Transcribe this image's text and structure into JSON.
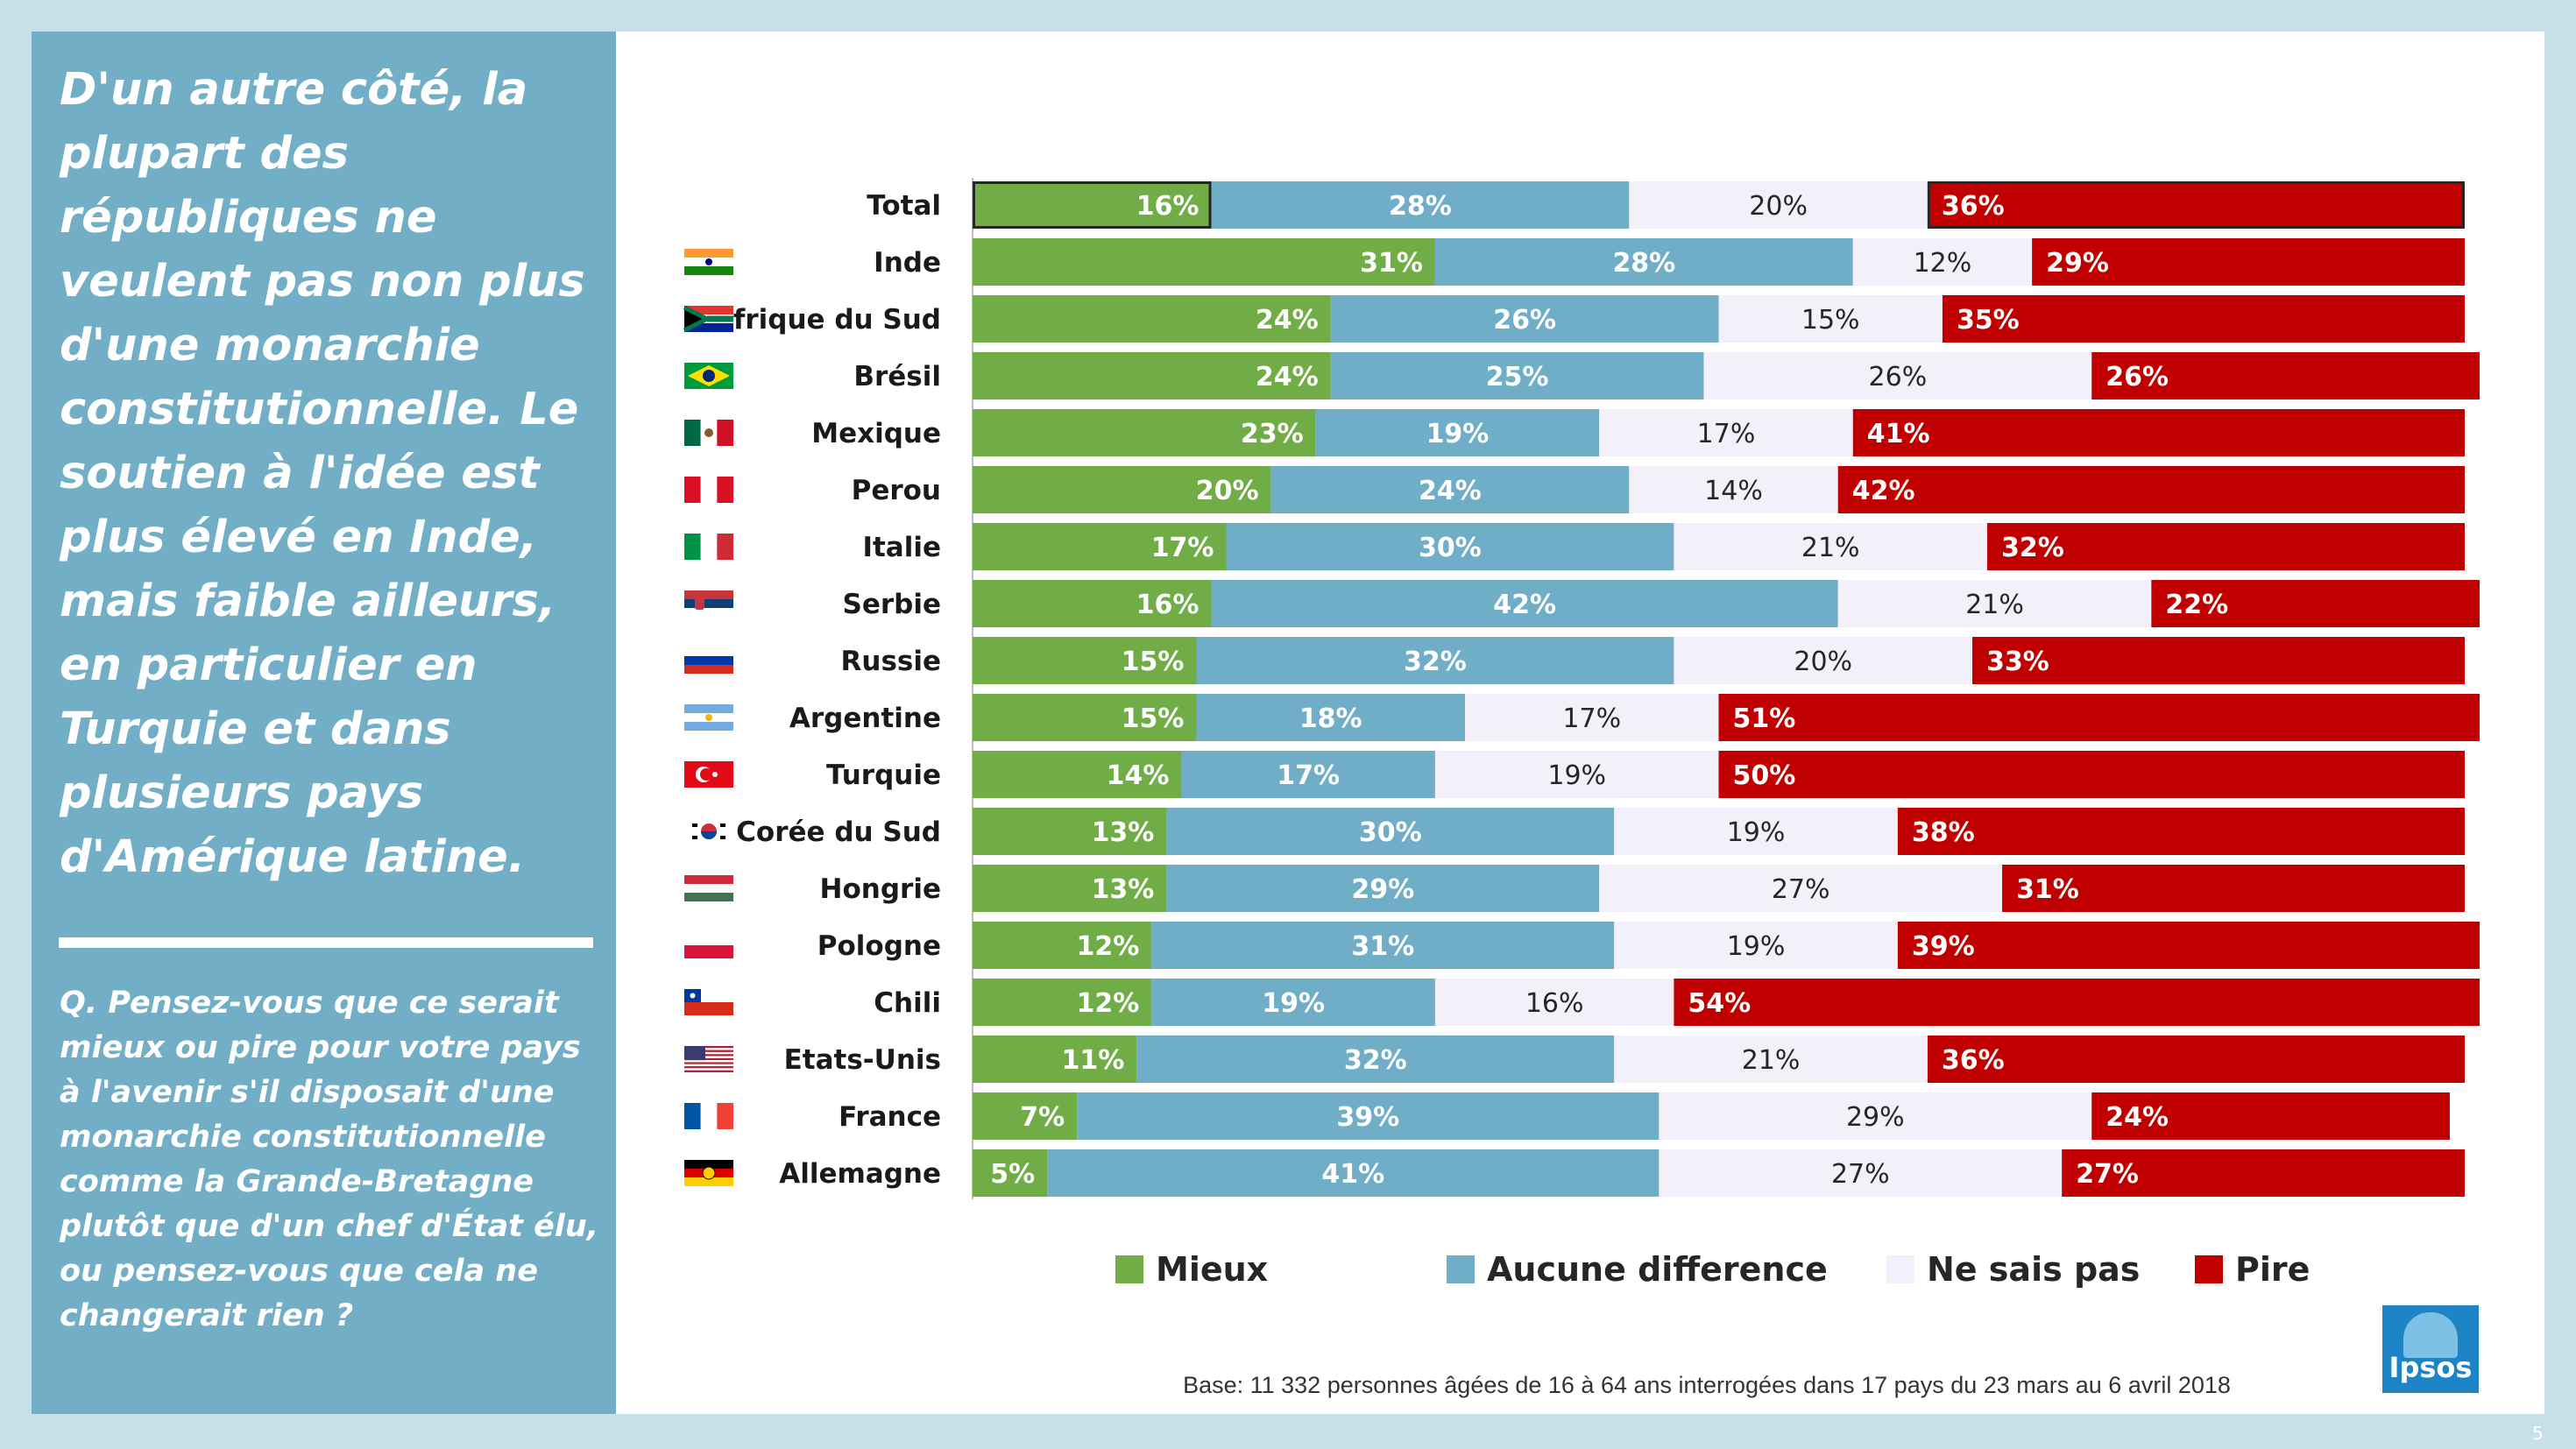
{
  "headline": "D'un autre côté, la plupart des républiques ne veulent pas non plus d'une monarchie constitutionnelle. Le soutien à l'idée est plus élevé en Inde, mais faible ailleurs, en particulier en Turquie et dans plusieurs pays d'Amérique latine.",
  "question": "Q. Pensez-vous que ce serait mieux ou pire pour votre pays à l'avenir s'il disposait d'une monarchie constitutionnelle comme la Grande-Bretagne plutôt que d'un chef d'État élu, ou pensez-vous que cela ne changerait rien ?",
  "footnote": "Base: 11 332 personnes âgées de 16 à 64 ans interrogées dans 17 pays du 23 mars au 6 avril 2018",
  "logo_text": "Ipsos",
  "page_number": "5",
  "colors": {
    "mieux": "#70ad47",
    "aucune": "#70aec8",
    "nsp": "#f4f0fa",
    "pire": "#c00000"
  },
  "chart_data": {
    "type": "bar",
    "orientation": "horizontal",
    "stacked": true,
    "xlim": [
      0,
      100
    ],
    "categories": [
      "Total",
      "Inde",
      "Afrique du Sud",
      "Brésil",
      "Mexique",
      "Perou",
      "Italie",
      "Serbie",
      "Russie",
      "Argentine",
      "Turquie",
      "Corée du Sud",
      "Hongrie",
      "Pologne",
      "Chili",
      "Etats-Unis",
      "France",
      "Allemagne"
    ],
    "series": [
      {
        "name": "Mieux",
        "color": "#70ad47",
        "values": [
          16,
          31,
          24,
          24,
          23,
          20,
          17,
          16,
          15,
          15,
          14,
          13,
          13,
          12,
          12,
          11,
          7,
          5
        ]
      },
      {
        "name": "Aucune difference",
        "color": "#70aec8",
        "values": [
          28,
          28,
          26,
          25,
          19,
          24,
          30,
          42,
          32,
          18,
          17,
          30,
          29,
          31,
          19,
          32,
          39,
          41
        ]
      },
      {
        "name": "Ne sais pas",
        "color": "#f4f0fa",
        "values": [
          20,
          12,
          15,
          26,
          17,
          14,
          21,
          21,
          20,
          17,
          19,
          19,
          27,
          19,
          16,
          21,
          29,
          27
        ]
      },
      {
        "name": "Pire",
        "color": "#c00000",
        "values": [
          36,
          29,
          35,
          26,
          41,
          42,
          32,
          22,
          33,
          51,
          50,
          38,
          31,
          39,
          54,
          36,
          24,
          27
        ]
      }
    ],
    "flags": [
      "",
      "india",
      "south-africa",
      "brazil",
      "mexico",
      "peru",
      "italy",
      "serbia",
      "russia",
      "argentina",
      "turkey",
      "south-korea",
      "hungary",
      "poland",
      "chile",
      "usa",
      "france",
      "germany"
    ],
    "legend_position": "bottom"
  }
}
